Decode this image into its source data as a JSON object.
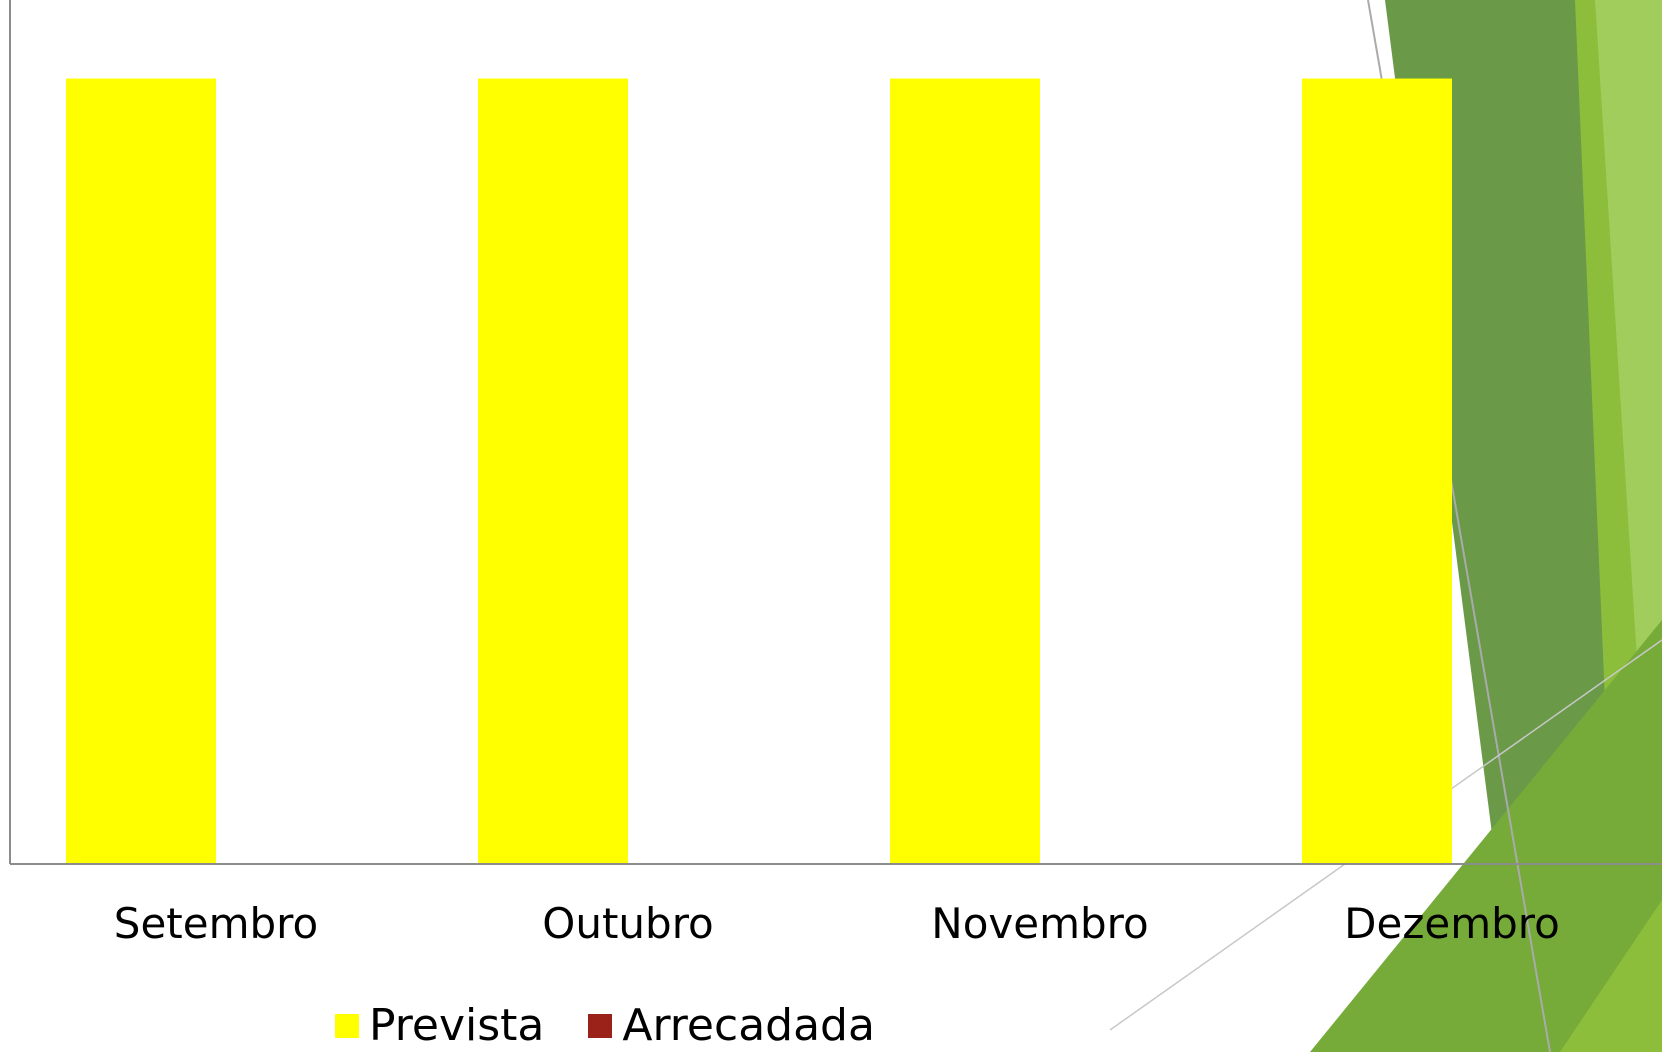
{
  "chart_data": {
    "type": "bar",
    "categories": [
      "Setembro",
      "Outubro",
      "Novembro",
      "Dezembro"
    ],
    "series": [
      {
        "name": "Prevista",
        "values": [
          1,
          1,
          1,
          1
        ],
        "color": "#FFFF00"
      },
      {
        "name": "Arrecadada",
        "values": [
          0,
          0,
          0,
          0
        ],
        "color": "#9B2218"
      }
    ],
    "title": "",
    "xlabel": "",
    "ylabel": "",
    "ylim": [
      0,
      1.1
    ],
    "grid": false,
    "legend_position": "bottom"
  },
  "theme": {
    "axis_color": "#8C8C8C",
    "decor_colors": [
      "#6A9A48",
      "#76AB3A",
      "#8CBE3C",
      "#A9D36A",
      "#DCEBC5"
    ]
  }
}
